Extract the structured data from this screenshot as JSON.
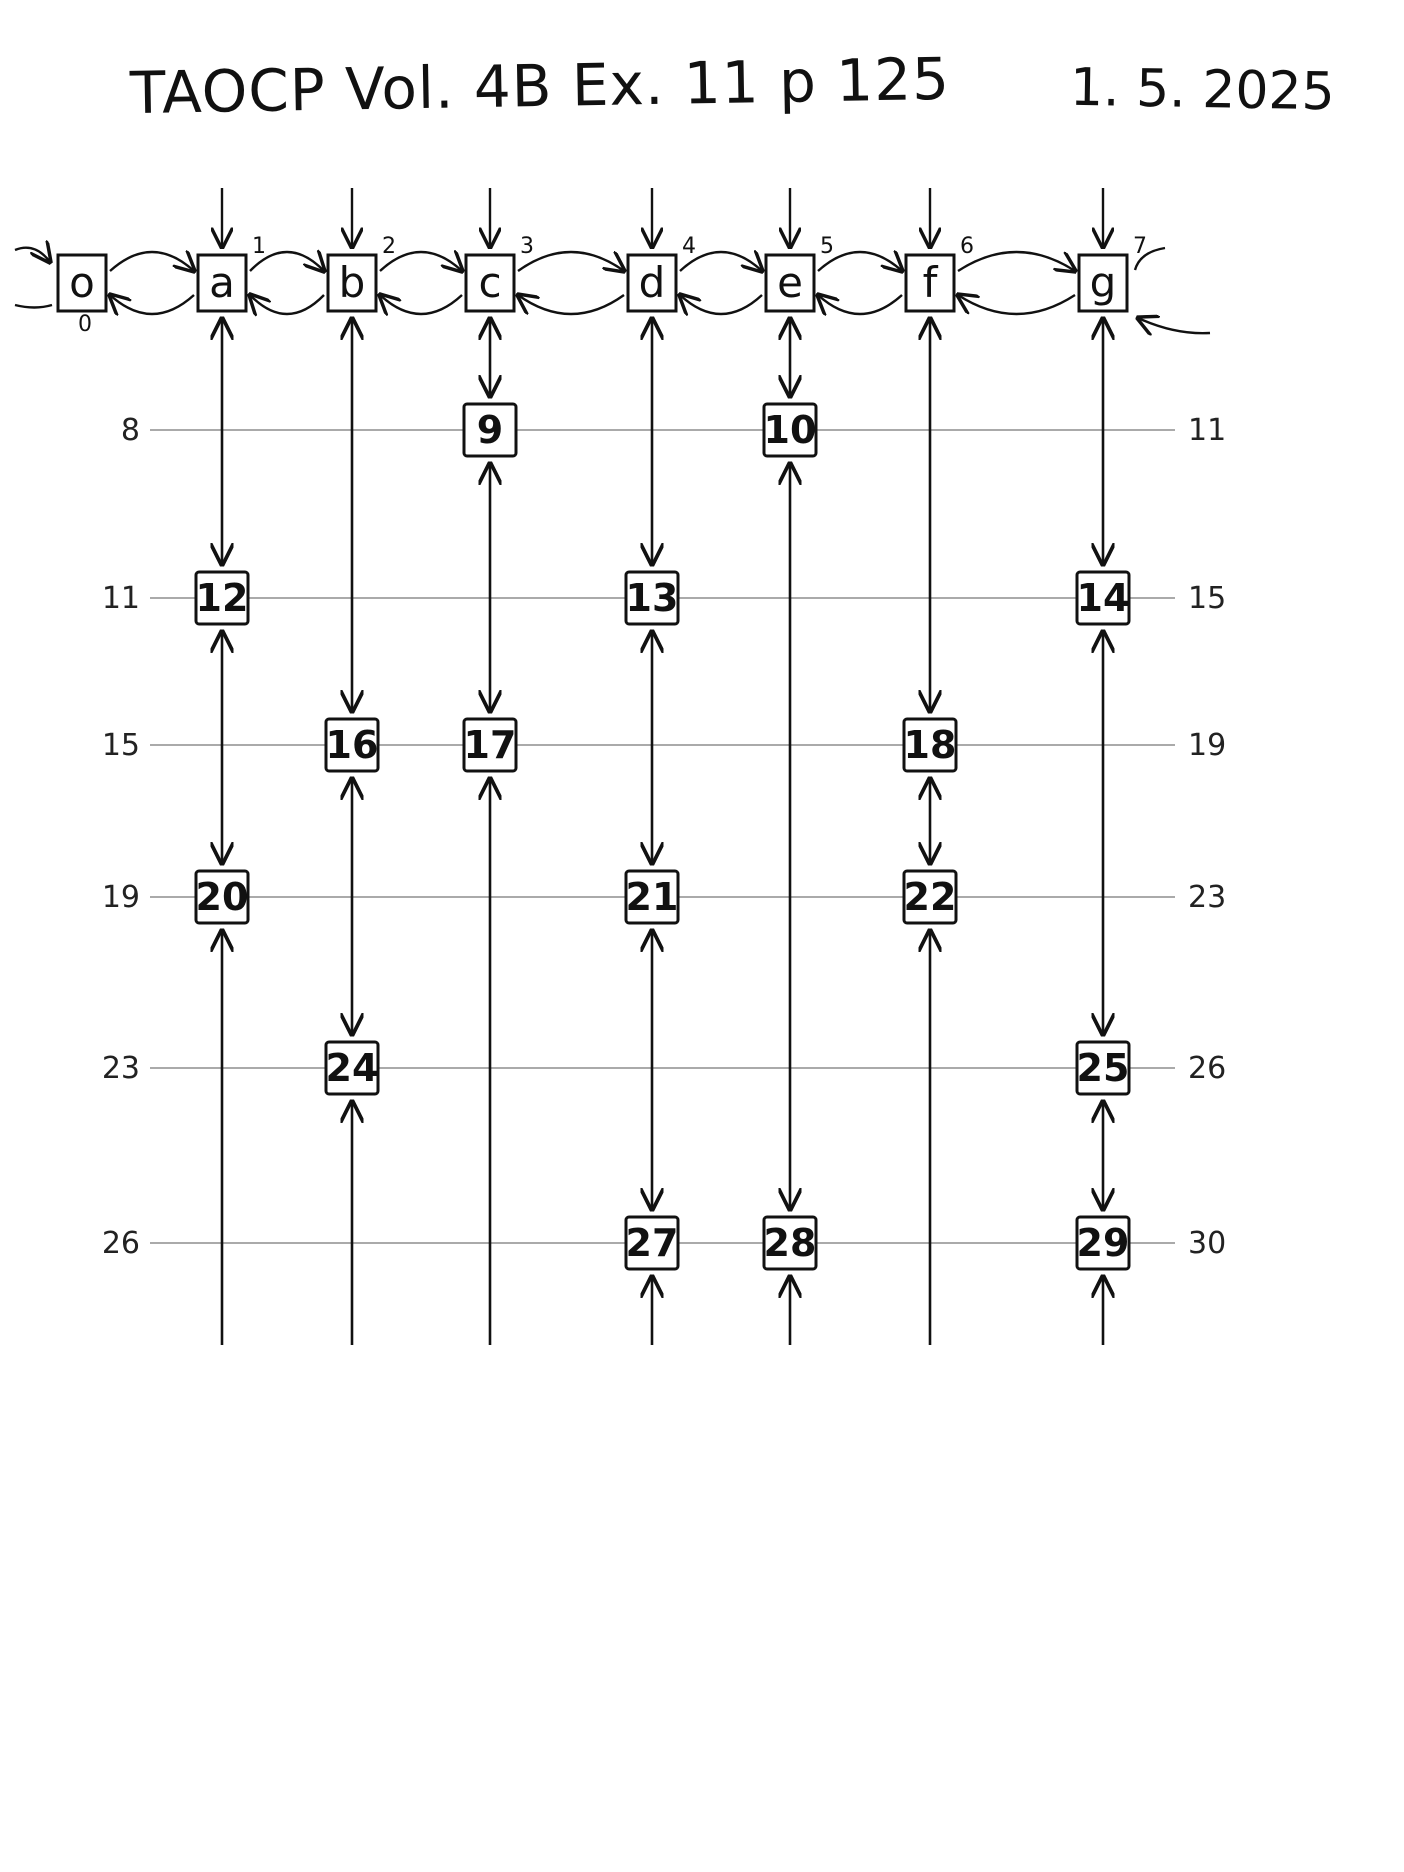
{
  "title": "TAOCP Vol. 4B Ex. 11 p 125",
  "date": "1. 5. 2025",
  "header_nodes": [
    {
      "label": "o",
      "index": "0"
    },
    {
      "label": "a",
      "index": "1"
    },
    {
      "label": "b",
      "index": "2"
    },
    {
      "label": "c",
      "index": "3"
    },
    {
      "label": "d",
      "index": "4"
    },
    {
      "label": "e",
      "index": "5"
    },
    {
      "label": "f",
      "index": "6"
    },
    {
      "label": "g",
      "index": "7"
    }
  ],
  "rows": [
    {
      "left": "8",
      "right": "11",
      "nodes": [
        {
          "col": "c",
          "label": "9"
        },
        {
          "col": "e",
          "label": "10"
        }
      ]
    },
    {
      "left": "11",
      "right": "15",
      "nodes": [
        {
          "col": "a",
          "label": "12"
        },
        {
          "col": "d",
          "label": "13"
        },
        {
          "col": "g",
          "label": "14"
        }
      ]
    },
    {
      "left": "15",
      "right": "19",
      "nodes": [
        {
          "col": "b",
          "label": "16"
        },
        {
          "col": "c",
          "label": "17"
        },
        {
          "col": "f",
          "label": "18"
        }
      ]
    },
    {
      "left": "19",
      "right": "23",
      "nodes": [
        {
          "col": "a",
          "label": "20"
        },
        {
          "col": "d",
          "label": "21"
        },
        {
          "col": "f",
          "label": "22"
        }
      ]
    },
    {
      "left": "23",
      "right": "26",
      "nodes": [
        {
          "col": "b",
          "label": "24"
        },
        {
          "col": "g",
          "label": "25"
        }
      ]
    },
    {
      "left": "26",
      "right": "30",
      "nodes": [
        {
          "col": "d",
          "label": "27"
        },
        {
          "col": "e",
          "label": "28"
        },
        {
          "col": "g",
          "label": "29"
        }
      ]
    }
  ]
}
